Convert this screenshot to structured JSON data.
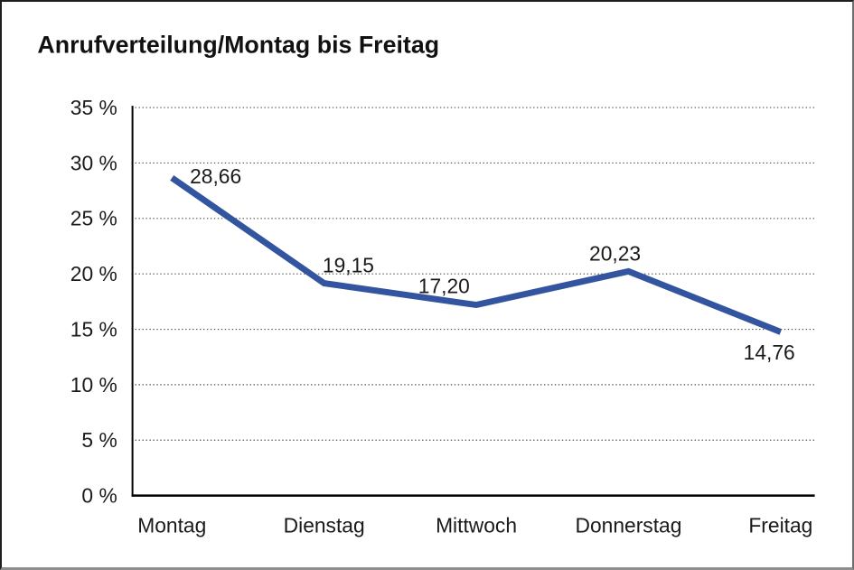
{
  "window": {
    "background": "#ffffff",
    "frame_border_color": "#1f1f1f"
  },
  "chart_data": {
    "type": "line",
    "title": "Anrufverteilung/Montag bis Freitag",
    "categories": [
      "Montag",
      "Dienstag",
      "Mittwoch",
      "Donnerstag",
      "Freitag"
    ],
    "values": [
      28.66,
      19.15,
      17.2,
      20.23,
      14.76
    ],
    "value_labels": [
      "28,66",
      "19,15",
      "17,20",
      "20,23",
      "14,76"
    ],
    "xlabel": "",
    "ylabel": "",
    "ylim": [
      0,
      35
    ],
    "ytick_step": 5,
    "y_tick_labels": [
      "0 %",
      "5 %",
      "10 %",
      "15 %",
      "20 %",
      "25 %",
      "30 %",
      "35 %"
    ],
    "grid": "horizontal-dotted",
    "legend": "none",
    "colors": {
      "line": "#33549E",
      "axis": "#000000",
      "grid_dots": "#4d4d4d",
      "text": "#1a1a1a"
    }
  }
}
